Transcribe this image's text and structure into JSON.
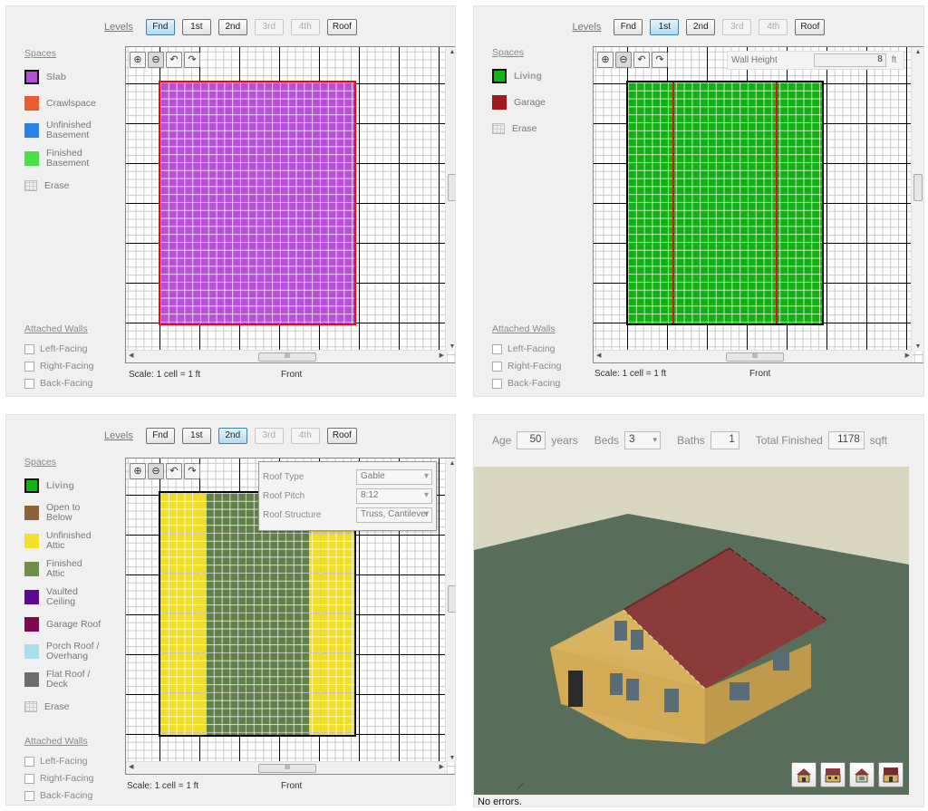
{
  "levels": {
    "label": "Levels",
    "buttons": [
      "Fnd",
      "1st",
      "2nd",
      "3rd",
      "4th",
      "Roof"
    ]
  },
  "panel_foundation": {
    "active_level": "Fnd",
    "spaces_label": "Spaces",
    "spaces": [
      {
        "label": "Slab",
        "color": "#b24fd6",
        "selected": true
      },
      {
        "label": "Crawlspace",
        "color": "#ef5b30"
      },
      {
        "label": "Unfinished\nBasement",
        "color": "#2a7fe8"
      },
      {
        "label": "Finished\nBasement",
        "color": "#4be04b"
      },
      {
        "label": "Erase",
        "icon": "erase-grid-icon"
      }
    ],
    "attached_walls_label": "Attached Walls",
    "attached_walls": [
      "Left-Facing",
      "Right-Facing",
      "Back-Facing"
    ],
    "scale": "Scale: 1 cell = 1 ft",
    "front": "Front",
    "fill_color": "#b84fd9",
    "outline_color": "#ff0000"
  },
  "panel_first": {
    "active_level": "1st",
    "spaces_label": "Spaces",
    "spaces": [
      {
        "label": "Living",
        "color": "#11b511",
        "selected": true
      },
      {
        "label": "Garage",
        "color": "#a01c1c"
      },
      {
        "label": "Erase",
        "icon": "erase-grid-icon"
      }
    ],
    "wall_height_label": "Wall Height",
    "wall_height_value": "8",
    "wall_height_unit": "ft",
    "attached_walls_label": "Attached Walls",
    "attached_walls": [
      "Left-Facing",
      "Right-Facing",
      "Back-Facing"
    ],
    "scale": "Scale: 1 cell = 1 ft",
    "front": "Front",
    "fill_color": "#12b012"
  },
  "panel_second": {
    "active_level": "2nd",
    "spaces_label": "Spaces",
    "spaces": [
      {
        "label": "Living",
        "color": "#11b511",
        "selected": true
      },
      {
        "label": "Open to\nBelow",
        "color": "#8c6239"
      },
      {
        "label": "Unfinished\nAttic",
        "color": "#f2e02a"
      },
      {
        "label": "Finished\nAttic",
        "color": "#6d8f4b"
      },
      {
        "label": "Vaulted\nCeiling",
        "color": "#5a0a8c"
      },
      {
        "label": "Garage Roof",
        "color": "#7a0a4e"
      },
      {
        "label": "Porch Roof /\nOverhang",
        "color": "#a8dfe9"
      },
      {
        "label": "Flat Roof /\nDeck",
        "color": "#6d6d6d"
      },
      {
        "label": "Erase",
        "icon": "erase-grid-icon"
      }
    ],
    "roof": {
      "type_label": "Roof Type",
      "type_value": "Gable",
      "pitch_label": "Roof Pitch",
      "pitch_value": "8:12",
      "structure_label": "Roof Structure",
      "structure_value": "Truss, Cantilever"
    },
    "attached_walls_label": "Attached Walls",
    "attached_walls": [
      "Left-Facing",
      "Right-Facing",
      "Back-Facing"
    ],
    "scale": "Scale: 1 cell = 1 ft",
    "front": "Front",
    "attic_color": "#f0de28",
    "finished_color": "#61804a"
  },
  "summary": {
    "age_label": "Age",
    "age_value": "50",
    "age_unit": "years",
    "beds_label": "Beds",
    "beds_value": "3",
    "baths_label": "Baths",
    "baths_value": "1",
    "total_label": "Total Finished",
    "total_value": "1178",
    "total_unit": "sqft",
    "status": "No errors.",
    "sky_color": "#d8d6bf",
    "ground_color": "#586e5a",
    "roof_color": "#8c3b3b",
    "wall_color": "#d4ac58",
    "view_buttons": [
      "house-front-view-icon",
      "house-top-view-icon",
      "house-side-view-icon",
      "house-roof-view-icon"
    ]
  }
}
